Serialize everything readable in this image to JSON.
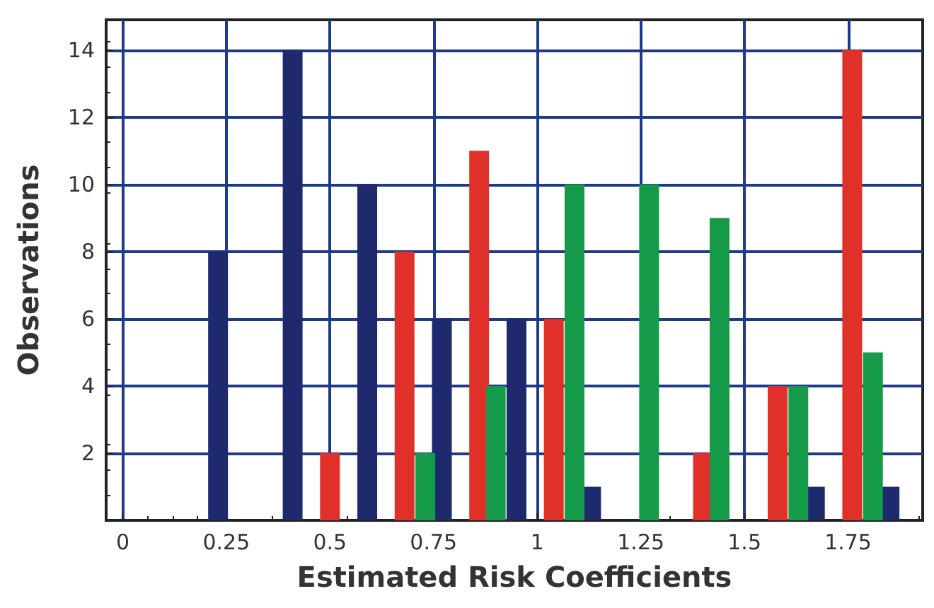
{
  "chart_data": {
    "type": "bar",
    "xlabel": "Estimated Risk Coefficients",
    "ylabel": "Observations",
    "xlim": [
      -0.04,
      1.93
    ],
    "xticks": [
      0,
      0.25,
      0.5,
      0.75,
      1,
      1.25,
      1.5,
      1.75
    ],
    "ylim": [
      0,
      14.9
    ],
    "yticks": [
      2,
      4,
      6,
      8,
      10,
      12,
      14
    ],
    "grid": true,
    "series": [
      {
        "color": "#1f2a6e",
        "x": [
          0.23,
          0.41,
          0.59,
          0.77,
          0.95,
          1.13,
          1.67,
          1.85
        ],
        "values": [
          8,
          14,
          10,
          6,
          6,
          1,
          1,
          1
        ]
      },
      {
        "color": "#e0302a",
        "x": [
          0.5,
          0.68,
          0.86,
          1.04,
          1.4,
          1.58,
          1.76
        ],
        "values": [
          2,
          8,
          11,
          6,
          2,
          4,
          14
        ]
      },
      {
        "color": "#149a48",
        "x": [
          0.73,
          0.9,
          1.09,
          1.27,
          1.44,
          1.63,
          1.81
        ],
        "values": [
          2,
          4,
          10,
          10,
          9,
          4,
          5
        ]
      }
    ]
  }
}
